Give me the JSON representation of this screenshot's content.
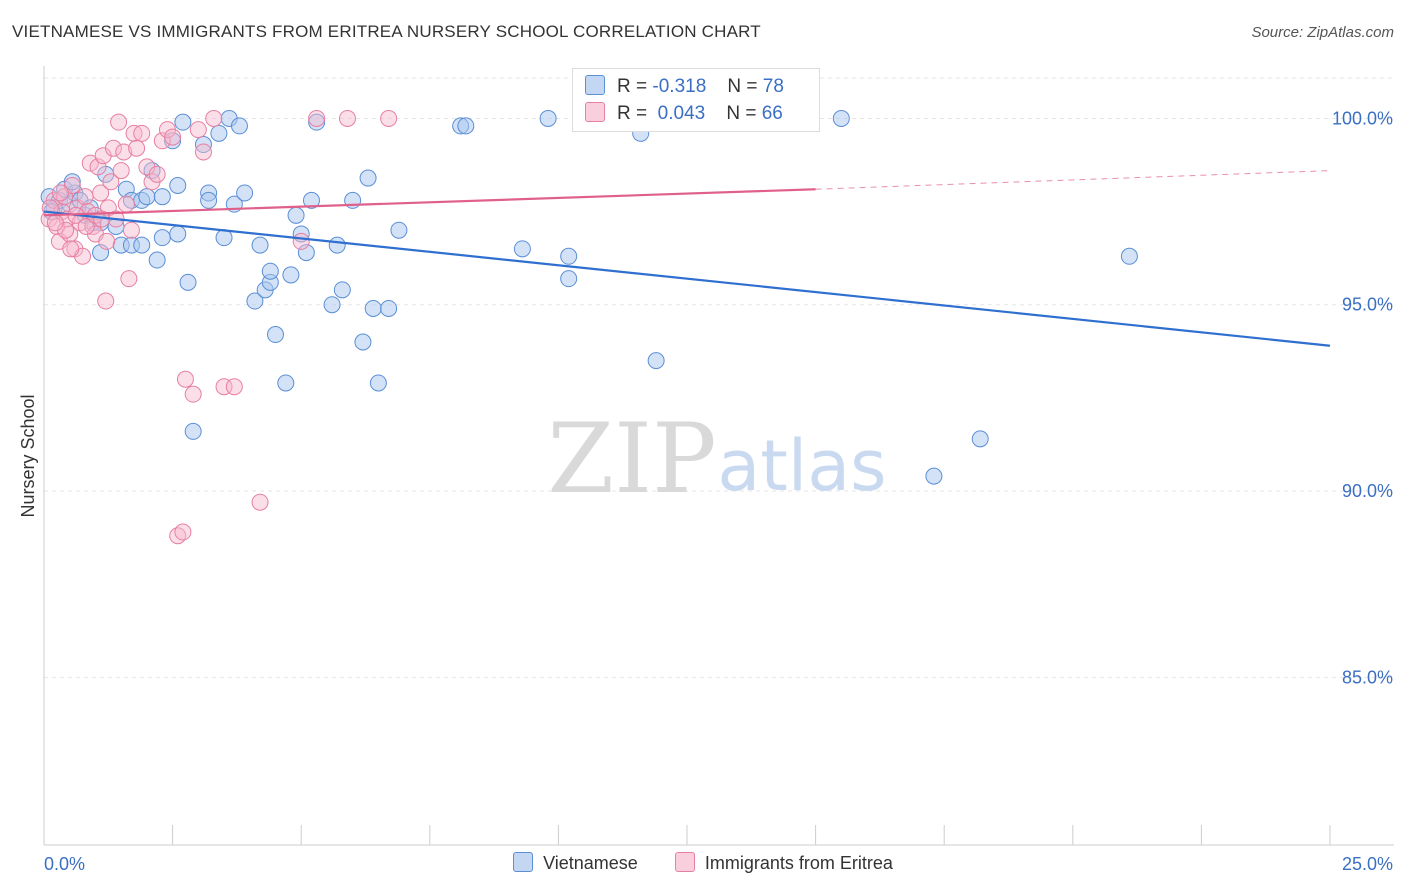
{
  "header": {
    "title": "VIETNAMESE VS IMMIGRANTS FROM ERITREA NURSERY SCHOOL CORRELATION CHART",
    "source": "Source: ZipAtlas.com"
  },
  "watermark": {
    "zip": "ZIP",
    "atlas": "atlas"
  },
  "colors": {
    "vietnamese_fill": "#a8c6ee",
    "vietnamese_stroke": "#5b8fd6",
    "vietnamese_line": "#2f6fd0",
    "eritrea_fill": "#f6b9cd",
    "eritrea_stroke": "#e77fa2",
    "eritrea_line": "#e0608c",
    "axis_label": "#3a6fc4",
    "grid": "#e6e6e6"
  },
  "stats": {
    "rows": [
      {
        "r_label": "R =",
        "r_value": "-0.318",
        "n_label": "N =",
        "n_value": "78"
      },
      {
        "r_label": "R =",
        "r_value": "0.043",
        "n_label": "N =",
        "n_value": "66"
      }
    ]
  },
  "legend": {
    "items": [
      "Vietnamese",
      "Immigrants from Eritrea"
    ]
  },
  "chart_data": {
    "type": "scatter",
    "title": "VIETNAMESE VS IMMIGRANTS FROM ERITREA NURSERY SCHOOL CORRELATION CHART",
    "xlabel": "",
    "ylabel": "Nursery School",
    "xlim": [
      0,
      25
    ],
    "ylim": [
      80.5,
      101.3
    ],
    "x_tick_labels": [
      "0.0%",
      "25.0%"
    ],
    "y_ticks": [
      85,
      90,
      95,
      100
    ],
    "y_tick_labels": [
      "85.0%",
      "90.0%",
      "95.0%",
      "100.0%"
    ],
    "grid": true,
    "legend_position": "bottom",
    "series": [
      {
        "name": "Vietnamese",
        "trend": {
          "x": [
            0,
            25
          ],
          "y": [
            97.5,
            93.9
          ]
        },
        "points": [
          [
            0.1,
            97.9
          ],
          [
            0.2,
            97.6
          ],
          [
            0.3,
            97.8
          ],
          [
            0.4,
            98.1
          ],
          [
            0.5,
            97.7
          ],
          [
            0.6,
            98.0
          ],
          [
            0.7,
            97.8
          ],
          [
            0.8,
            97.4
          ],
          [
            0.9,
            97.6
          ],
          [
            1.1,
            96.4
          ],
          [
            1.1,
            97.2
          ],
          [
            1.2,
            98.5
          ],
          [
            1.4,
            97.1
          ],
          [
            1.5,
            96.6
          ],
          [
            1.6,
            98.1
          ],
          [
            1.7,
            97.8
          ],
          [
            1.7,
            96.6
          ],
          [
            1.9,
            97.8
          ],
          [
            1.9,
            96.6
          ],
          [
            2.0,
            97.9
          ],
          [
            2.1,
            98.6
          ],
          [
            2.2,
            96.2
          ],
          [
            2.3,
            97.9
          ],
          [
            2.3,
            96.8
          ],
          [
            2.5,
            99.4
          ],
          [
            2.6,
            98.2
          ],
          [
            2.6,
            96.9
          ],
          [
            2.7,
            99.9
          ],
          [
            2.8,
            95.6
          ],
          [
            2.9,
            91.6
          ],
          [
            3.1,
            99.3
          ],
          [
            3.2,
            98.0
          ],
          [
            3.2,
            97.8
          ],
          [
            3.4,
            99.6
          ],
          [
            3.5,
            96.8
          ],
          [
            3.6,
            100.0
          ],
          [
            3.7,
            97.7
          ],
          [
            3.8,
            99.8
          ],
          [
            3.9,
            98.0
          ],
          [
            4.1,
            95.1
          ],
          [
            4.2,
            96.6
          ],
          [
            4.3,
            95.4
          ],
          [
            4.4,
            95.6
          ],
          [
            4.4,
            95.9
          ],
          [
            4.5,
            94.2
          ],
          [
            4.7,
            92.9
          ],
          [
            4.8,
            95.8
          ],
          [
            4.9,
            97.4
          ],
          [
            5.0,
            96.9
          ],
          [
            5.1,
            96.4
          ],
          [
            5.2,
            97.8
          ],
          [
            5.3,
            99.9
          ],
          [
            5.6,
            95.0
          ],
          [
            5.7,
            96.6
          ],
          [
            5.8,
            95.4
          ],
          [
            6.0,
            97.8
          ],
          [
            6.2,
            94.0
          ],
          [
            6.3,
            98.4
          ],
          [
            6.4,
            94.9
          ],
          [
            6.5,
            92.9
          ],
          [
            6.7,
            94.9
          ],
          [
            6.9,
            97.0
          ],
          [
            8.1,
            99.8
          ],
          [
            8.2,
            99.8
          ],
          [
            9.3,
            96.5
          ],
          [
            9.8,
            100.0
          ],
          [
            10.2,
            96.3
          ],
          [
            10.2,
            95.7
          ],
          [
            11.6,
            99.6
          ],
          [
            11.9,
            93.5
          ],
          [
            13.5,
            99.9
          ],
          [
            15.5,
            100.0
          ],
          [
            17.3,
            90.4
          ],
          [
            18.2,
            91.4
          ],
          [
            21.1,
            96.3
          ],
          [
            0.15,
            97.5
          ],
          [
            0.55,
            98.3
          ],
          [
            0.95,
            97.2
          ]
        ]
      },
      {
        "name": "Immigrants from Eritrea",
        "trend": {
          "x": [
            0,
            15
          ],
          "y": [
            97.4,
            98.1
          ]
        },
        "trend_extension": {
          "x": [
            15,
            25
          ],
          "y": [
            98.1,
            98.6
          ]
        },
        "points": [
          [
            0.1,
            97.3
          ],
          [
            0.2,
            97.8
          ],
          [
            0.25,
            97.1
          ],
          [
            0.3,
            96.7
          ],
          [
            0.35,
            97.5
          ],
          [
            0.4,
            97.9
          ],
          [
            0.45,
            97.3
          ],
          [
            0.5,
            96.9
          ],
          [
            0.55,
            98.2
          ],
          [
            0.6,
            96.5
          ],
          [
            0.65,
            97.6
          ],
          [
            0.7,
            97.2
          ],
          [
            0.75,
            96.3
          ],
          [
            0.8,
            97.9
          ],
          [
            0.85,
            97.5
          ],
          [
            0.9,
            98.8
          ],
          [
            0.95,
            97.1
          ],
          [
            1.0,
            96.9
          ],
          [
            1.05,
            98.7
          ],
          [
            1.1,
            98.0
          ],
          [
            1.15,
            99.0
          ],
          [
            1.2,
            95.1
          ],
          [
            1.25,
            97.6
          ],
          [
            1.3,
            98.3
          ],
          [
            1.35,
            99.2
          ],
          [
            1.4,
            97.3
          ],
          [
            1.45,
            99.9
          ],
          [
            1.5,
            98.6
          ],
          [
            1.55,
            99.1
          ],
          [
            1.6,
            97.7
          ],
          [
            1.65,
            95.7
          ],
          [
            1.7,
            97.0
          ],
          [
            1.75,
            99.6
          ],
          [
            1.8,
            99.2
          ],
          [
            1.9,
            99.6
          ],
          [
            2.0,
            98.7
          ],
          [
            2.1,
            98.3
          ],
          [
            2.2,
            98.5
          ],
          [
            2.3,
            99.4
          ],
          [
            2.4,
            99.7
          ],
          [
            2.5,
            99.5
          ],
          [
            2.6,
            88.8
          ],
          [
            2.7,
            88.9
          ],
          [
            2.75,
            93.0
          ],
          [
            2.9,
            92.6
          ],
          [
            3.0,
            99.7
          ],
          [
            3.1,
            99.1
          ],
          [
            3.3,
            100.0
          ],
          [
            3.5,
            92.8
          ],
          [
            3.7,
            92.8
          ],
          [
            4.2,
            89.7
          ],
          [
            5.0,
            96.7
          ],
          [
            5.3,
            100.0
          ],
          [
            5.9,
            100.0
          ],
          [
            6.7,
            100.0
          ],
          [
            13.2,
            100.0
          ],
          [
            0.12,
            97.6
          ],
          [
            0.32,
            98.0
          ],
          [
            0.42,
            97.0
          ],
          [
            0.62,
            97.4
          ],
          [
            0.82,
            97.1
          ],
          [
            1.0,
            97.4
          ],
          [
            1.12,
            97.3
          ],
          [
            1.22,
            96.7
          ],
          [
            0.22,
            97.2
          ],
          [
            0.52,
            96.5
          ]
        ]
      }
    ]
  }
}
